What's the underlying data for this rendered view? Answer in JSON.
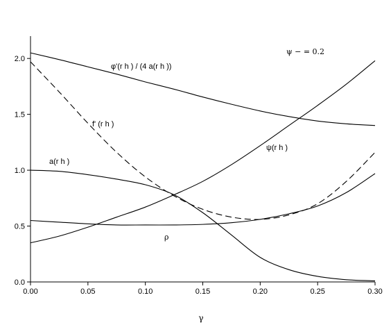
{
  "chart_data": {
    "type": "line",
    "xlabel": "γ",
    "ylabel": "",
    "xlim": [
      0.0,
      0.3
    ],
    "ylim": [
      0.0,
      2.2
    ],
    "x_ticks": [
      "0.00",
      "0.05",
      "0.10",
      "0.15",
      "0.20",
      "0.25",
      "0.30"
    ],
    "y_ticks": [
      "0.0",
      "0.5",
      "1.0",
      "1.5",
      "2.0"
    ],
    "grid": false,
    "legend": "none",
    "parameter_note": "ψ − = 0.2",
    "series": [
      {
        "name": "φ'(r h ) / (4 a(r h ))",
        "dash": "solid",
        "x": [
          0.0,
          0.025,
          0.05,
          0.075,
          0.1,
          0.125,
          0.15,
          0.175,
          0.2,
          0.225,
          0.25,
          0.275,
          0.3
        ],
        "y": [
          2.05,
          1.99,
          1.925,
          1.86,
          1.79,
          1.725,
          1.655,
          1.59,
          1.53,
          1.48,
          1.44,
          1.415,
          1.4
        ]
      },
      {
        "name": "f' (r h )",
        "dash": "dashed",
        "x": [
          0.0,
          0.025,
          0.05,
          0.075,
          0.1,
          0.125,
          0.15,
          0.175,
          0.2,
          0.225,
          0.25,
          0.275,
          0.3
        ],
        "y": [
          1.97,
          1.7,
          1.42,
          1.16,
          0.94,
          0.77,
          0.65,
          0.58,
          0.56,
          0.6,
          0.7,
          0.9,
          1.16
        ]
      },
      {
        "name": "a(r h )",
        "dash": "solid",
        "x": [
          0.0,
          0.025,
          0.05,
          0.075,
          0.1,
          0.125,
          0.15,
          0.175,
          0.2,
          0.225,
          0.25,
          0.275,
          0.3
        ],
        "y": [
          1.0,
          0.99,
          0.96,
          0.92,
          0.87,
          0.78,
          0.62,
          0.42,
          0.22,
          0.11,
          0.05,
          0.02,
          0.01
        ]
      },
      {
        "name": "ψ(r h )",
        "dash": "solid",
        "x": [
          0.0,
          0.025,
          0.05,
          0.075,
          0.1,
          0.125,
          0.15,
          0.175,
          0.2,
          0.225,
          0.25,
          0.275,
          0.3
        ],
        "y": [
          0.35,
          0.41,
          0.49,
          0.58,
          0.67,
          0.78,
          0.9,
          1.05,
          1.22,
          1.4,
          1.58,
          1.77,
          1.98
        ]
      },
      {
        "name": "ρ",
        "dash": "solid",
        "x": [
          0.0,
          0.025,
          0.05,
          0.075,
          0.1,
          0.125,
          0.15,
          0.175,
          0.2,
          0.225,
          0.25,
          0.275,
          0.3
        ],
        "y": [
          0.55,
          0.535,
          0.52,
          0.51,
          0.51,
          0.51,
          0.515,
          0.53,
          0.56,
          0.61,
          0.68,
          0.8,
          0.97
        ]
      }
    ]
  }
}
